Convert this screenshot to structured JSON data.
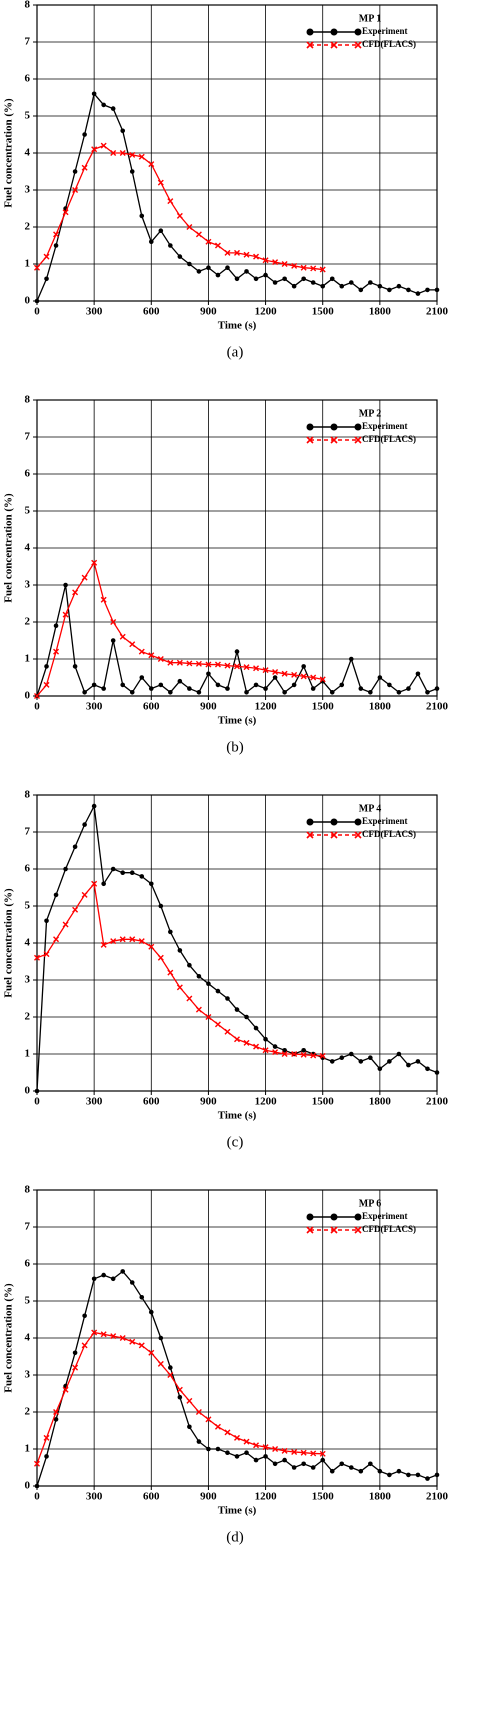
{
  "chart_data": [
    {
      "type": "line",
      "legend_title": "MP 1",
      "caption": "(a)",
      "x_label": "Time (s)",
      "y_label": "Fuel concentration (%)",
      "xlim": [
        0,
        2100
      ],
      "xticks": [
        0,
        300,
        600,
        900,
        1200,
        1500,
        1800,
        2100
      ],
      "ylim": [
        0,
        8
      ],
      "yticks": [
        0,
        1,
        2,
        3,
        4,
        5,
        6,
        7,
        8
      ],
      "grid": true,
      "series": [
        {
          "name": "Experiment",
          "color": "#000000",
          "marker": "circle",
          "x": [
            0,
            50,
            100,
            150,
            200,
            250,
            300,
            350,
            400,
            450,
            500,
            550,
            600,
            650,
            700,
            750,
            800,
            850,
            900,
            950,
            1000,
            1050,
            1100,
            1150,
            1200,
            1250,
            1300,
            1350,
            1400,
            1450,
            1500,
            1550,
            1600,
            1650,
            1700,
            1750,
            1800,
            1850,
            1900,
            1950,
            2000,
            2050,
            2100
          ],
          "values": [
            0,
            0.6,
            1.5,
            2.5,
            3.5,
            4.5,
            5.6,
            5.3,
            5.2,
            4.6,
            3.5,
            2.3,
            1.6,
            1.9,
            1.5,
            1.2,
            1.0,
            0.8,
            0.9,
            0.7,
            0.9,
            0.6,
            0.8,
            0.6,
            0.7,
            0.5,
            0.6,
            0.4,
            0.6,
            0.5,
            0.4,
            0.6,
            0.4,
            0.5,
            0.3,
            0.5,
            0.4,
            0.3,
            0.4,
            0.3,
            0.2,
            0.3,
            0.3
          ]
        },
        {
          "name": "CFD(FLACS)",
          "color": "#ff0000",
          "marker": "cross",
          "x": [
            0,
            50,
            100,
            150,
            200,
            250,
            300,
            350,
            400,
            450,
            500,
            550,
            600,
            650,
            700,
            750,
            800,
            850,
            900,
            950,
            1000,
            1050,
            1100,
            1150,
            1200,
            1250,
            1300,
            1350,
            1400,
            1450,
            1500
          ],
          "values": [
            0.9,
            1.2,
            1.8,
            2.4,
            3.0,
            3.6,
            4.1,
            4.2,
            4.0,
            4.0,
            3.95,
            3.9,
            3.7,
            3.2,
            2.7,
            2.3,
            2.0,
            1.8,
            1.6,
            1.5,
            1.3,
            1.3,
            1.25,
            1.2,
            1.1,
            1.05,
            1.0,
            0.95,
            0.9,
            0.88,
            0.85
          ]
        }
      ]
    },
    {
      "type": "line",
      "legend_title": "MP 2",
      "caption": "(b)",
      "x_label": "Time (s)",
      "y_label": "Fuel concentration (%)",
      "xlim": [
        0,
        2100
      ],
      "xticks": [
        0,
        300,
        600,
        900,
        1200,
        1500,
        1800,
        2100
      ],
      "ylim": [
        0,
        8
      ],
      "yticks": [
        0,
        1,
        2,
        3,
        4,
        5,
        6,
        7,
        8
      ],
      "grid": true,
      "series": [
        {
          "name": "Experiment",
          "color": "#000000",
          "marker": "circle",
          "x": [
            0,
            50,
            100,
            150,
            200,
            250,
            300,
            350,
            400,
            450,
            500,
            550,
            600,
            650,
            700,
            750,
            800,
            850,
            900,
            950,
            1000,
            1050,
            1100,
            1150,
            1200,
            1250,
            1300,
            1350,
            1400,
            1450,
            1500,
            1550,
            1600,
            1650,
            1700,
            1750,
            1800,
            1850,
            1900,
            1950,
            2000,
            2050,
            2100
          ],
          "values": [
            0,
            0.8,
            1.9,
            3.0,
            0.8,
            0.1,
            0.3,
            0.2,
            1.5,
            0.3,
            0.1,
            0.5,
            0.2,
            0.3,
            0.1,
            0.4,
            0.2,
            0.1,
            0.6,
            0.3,
            0.2,
            1.2,
            0.1,
            0.3,
            0.2,
            0.5,
            0.1,
            0.3,
            0.8,
            0.2,
            0.4,
            0.1,
            0.3,
            1.0,
            0.2,
            0.1,
            0.5,
            0.3,
            0.1,
            0.2,
            0.6,
            0.1,
            0.2
          ]
        },
        {
          "name": "CFD(FLACS)",
          "color": "#ff0000",
          "marker": "cross",
          "x": [
            0,
            50,
            100,
            150,
            200,
            250,
            300,
            350,
            400,
            450,
            500,
            550,
            600,
            650,
            700,
            750,
            800,
            850,
            900,
            950,
            1000,
            1050,
            1100,
            1150,
            1200,
            1250,
            1300,
            1350,
            1400,
            1450,
            1500
          ],
          "values": [
            0,
            0.3,
            1.2,
            2.2,
            2.8,
            3.2,
            3.6,
            2.6,
            2.0,
            1.6,
            1.4,
            1.2,
            1.1,
            1.0,
            0.9,
            0.9,
            0.88,
            0.87,
            0.85,
            0.85,
            0.82,
            0.8,
            0.78,
            0.75,
            0.7,
            0.65,
            0.6,
            0.57,
            0.53,
            0.5,
            0.45
          ]
        }
      ]
    },
    {
      "type": "line",
      "legend_title": "MP 4",
      "caption": "(c)",
      "x_label": "Time (s)",
      "y_label": "Fuel concentration (%)",
      "xlim": [
        0,
        2100
      ],
      "xticks": [
        0,
        300,
        600,
        900,
        1200,
        1500,
        1800,
        2100
      ],
      "ylim": [
        0,
        8
      ],
      "yticks": [
        0,
        1,
        2,
        3,
        4,
        5,
        6,
        7,
        8
      ],
      "grid": true,
      "series": [
        {
          "name": "Experiment",
          "color": "#000000",
          "marker": "circle",
          "x": [
            0,
            50,
            100,
            150,
            200,
            250,
            300,
            350,
            400,
            450,
            500,
            550,
            600,
            650,
            700,
            750,
            800,
            850,
            900,
            950,
            1000,
            1050,
            1100,
            1150,
            1200,
            1250,
            1300,
            1350,
            1400,
            1450,
            1500,
            1550,
            1600,
            1650,
            1700,
            1750,
            1800,
            1850,
            1900,
            1950,
            2000,
            2050,
            2100
          ],
          "values": [
            0,
            4.6,
            5.3,
            6.0,
            6.6,
            7.2,
            7.7,
            5.6,
            6.0,
            5.9,
            5.9,
            5.8,
            5.6,
            5.0,
            4.3,
            3.8,
            3.4,
            3.1,
            2.9,
            2.7,
            2.5,
            2.2,
            2.0,
            1.7,
            1.4,
            1.2,
            1.1,
            1.0,
            1.1,
            1.0,
            0.9,
            0.8,
            0.9,
            1.0,
            0.8,
            0.9,
            0.6,
            0.8,
            1.0,
            0.7,
            0.8,
            0.6,
            0.5
          ]
        },
        {
          "name": "CFD(FLACS)",
          "color": "#ff0000",
          "marker": "cross",
          "x": [
            0,
            50,
            100,
            150,
            200,
            250,
            300,
            350,
            400,
            450,
            500,
            550,
            600,
            650,
            700,
            750,
            800,
            850,
            900,
            950,
            1000,
            1050,
            1100,
            1150,
            1200,
            1250,
            1300,
            1350,
            1400,
            1450,
            1500
          ],
          "values": [
            3.6,
            3.7,
            4.1,
            4.5,
            4.9,
            5.3,
            5.6,
            3.95,
            4.05,
            4.1,
            4.1,
            4.05,
            3.9,
            3.6,
            3.2,
            2.8,
            2.5,
            2.2,
            2.0,
            1.8,
            1.6,
            1.4,
            1.3,
            1.2,
            1.1,
            1.05,
            1.0,
            1.0,
            0.98,
            0.96,
            0.95
          ]
        }
      ]
    },
    {
      "type": "line",
      "legend_title": "MP 6",
      "caption": "(d)",
      "x_label": "Time (s)",
      "y_label": "Fuel concentration (%)",
      "xlim": [
        0,
        2100
      ],
      "xticks": [
        0,
        300,
        600,
        900,
        1200,
        1500,
        1800,
        2100
      ],
      "ylim": [
        0,
        8
      ],
      "yticks": [
        0,
        1,
        2,
        3,
        4,
        5,
        6,
        7,
        8
      ],
      "grid": true,
      "series": [
        {
          "name": "Experiment",
          "color": "#000000",
          "marker": "circle",
          "x": [
            0,
            50,
            100,
            150,
            200,
            250,
            300,
            350,
            400,
            450,
            500,
            550,
            600,
            650,
            700,
            750,
            800,
            850,
            900,
            950,
            1000,
            1050,
            1100,
            1150,
            1200,
            1250,
            1300,
            1350,
            1400,
            1450,
            1500,
            1550,
            1600,
            1650,
            1700,
            1750,
            1800,
            1850,
            1900,
            1950,
            2000,
            2050,
            2100
          ],
          "values": [
            0,
            0.8,
            1.8,
            2.7,
            3.6,
            4.6,
            5.6,
            5.7,
            5.6,
            5.8,
            5.5,
            5.1,
            4.7,
            4.0,
            3.2,
            2.4,
            1.6,
            1.2,
            1.0,
            1.0,
            0.9,
            0.8,
            0.9,
            0.7,
            0.8,
            0.6,
            0.7,
            0.5,
            0.6,
            0.5,
            0.7,
            0.4,
            0.6,
            0.5,
            0.4,
            0.6,
            0.4,
            0.3,
            0.4,
            0.3,
            0.3,
            0.2,
            0.3
          ]
        },
        {
          "name": "CFD(FLACS)",
          "color": "#ff0000",
          "marker": "cross",
          "x": [
            0,
            50,
            100,
            150,
            200,
            250,
            300,
            350,
            400,
            450,
            500,
            550,
            600,
            650,
            700,
            750,
            800,
            850,
            900,
            950,
            1000,
            1050,
            1100,
            1150,
            1200,
            1250,
            1300,
            1350,
            1400,
            1450,
            1500
          ],
          "values": [
            0.6,
            1.3,
            2.0,
            2.6,
            3.2,
            3.8,
            4.15,
            4.1,
            4.05,
            4.0,
            3.9,
            3.8,
            3.6,
            3.3,
            3.0,
            2.6,
            2.3,
            2.0,
            1.8,
            1.6,
            1.45,
            1.3,
            1.2,
            1.1,
            1.05,
            1.0,
            0.95,
            0.92,
            0.9,
            0.88,
            0.87
          ]
        }
      ]
    }
  ]
}
